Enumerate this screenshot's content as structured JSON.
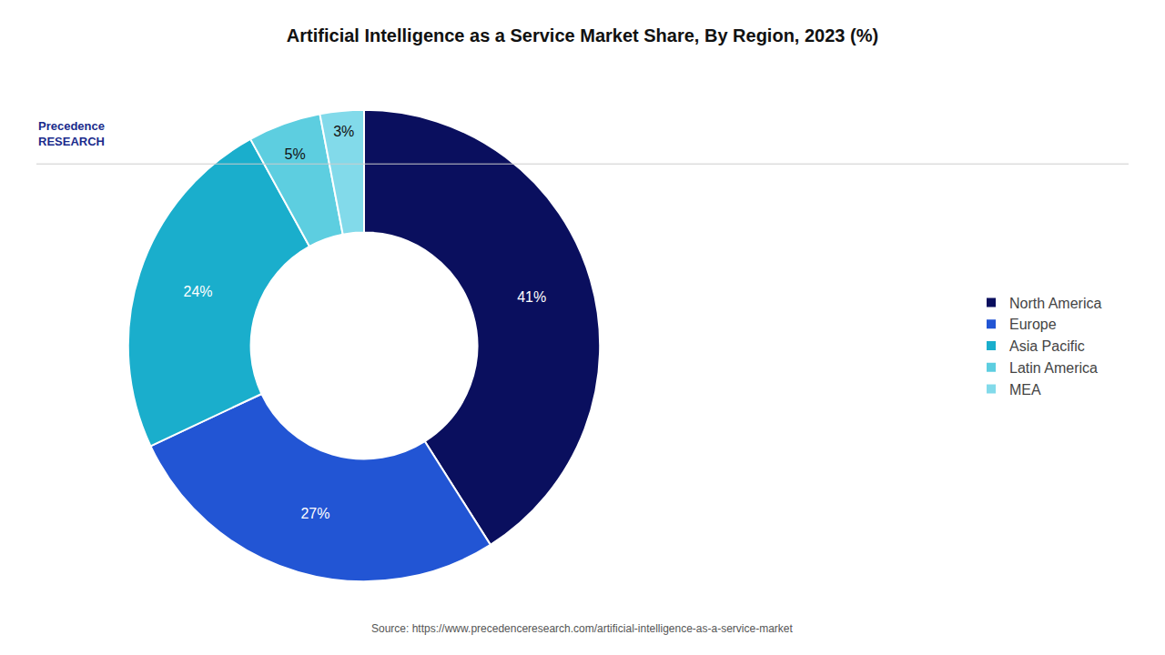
{
  "chart_data": {
    "type": "pie",
    "title": "Artificial Intelligence as a Service Market Share, By Region, 2023 (%)",
    "categories": [
      "North America",
      "Europe",
      "Asia Pacific",
      "Latin America",
      "MEA"
    ],
    "values": [
      41,
      27,
      24,
      5,
      3
    ],
    "value_labels": [
      "41%",
      "27%",
      "24%",
      "5%",
      "3%"
    ],
    "colors": [
      "#0a0f5e",
      "#2255d4",
      "#1aaecc",
      "#5dcee0",
      "#82daea"
    ],
    "data_labels": true,
    "legend": "right",
    "annotations": [
      "Source: https://www.precedenceresearch.com/artificial-intelligence-as-a-service-market",
      "Precedence\nRESEARCH"
    ]
  }
}
